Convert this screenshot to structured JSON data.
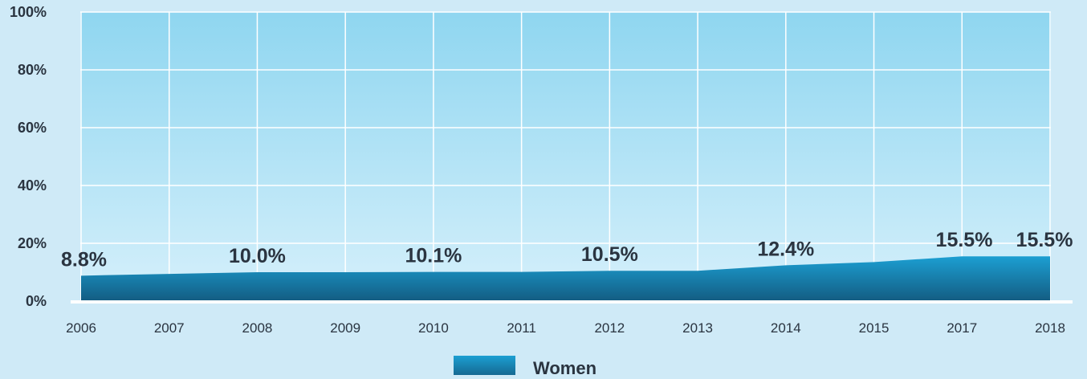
{
  "chart_data": {
    "type": "area",
    "categories": [
      "2006",
      "2007",
      "2008",
      "2009",
      "2010",
      "2011",
      "2012",
      "2013",
      "2014",
      "2015",
      "2017",
      "2018"
    ],
    "series": [
      {
        "name": "Women",
        "values": [
          8.8,
          9.4,
          10.0,
          10.0,
          10.1,
          10.1,
          10.5,
          10.5,
          12.4,
          13.5,
          15.5,
          15.5
        ],
        "labels": [
          "8.8%",
          "",
          "10.0%",
          "",
          "10.1%",
          "",
          "10.5%",
          "",
          "12.4%",
          "",
          "15.5%",
          "15.5%"
        ]
      }
    ],
    "y_ticks": [
      "0%",
      "20%",
      "40%",
      "60%",
      "80%",
      "100%"
    ],
    "ylim": [
      0,
      100
    ],
    "grid": true,
    "legend_position": "bottom",
    "colors": {
      "page_background": "#cfeaf7",
      "plot_top": "#8fd6f0",
      "plot_bottom": "#d6f0fb",
      "area_top": "#1c9fd2",
      "area_bottom": "#135c82",
      "grid": "#ffffff",
      "text": "#2a3440"
    }
  }
}
